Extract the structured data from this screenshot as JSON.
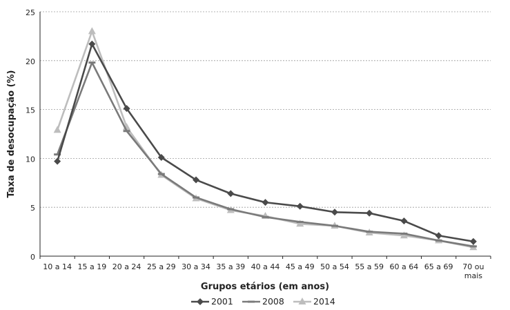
{
  "chart_data": {
    "type": "line",
    "categories": [
      "10 a 14",
      "15 a 19",
      "20 a 24",
      "25 a 29",
      "30 a 34",
      "35 a 39",
      "40 a 44",
      "45 a 49",
      "50 a 54",
      "55 a 59",
      "60 a 64",
      "65 a 69",
      "70 ou mais"
    ],
    "category_lines": [
      [
        "10 a 14"
      ],
      [
        "15 a 19"
      ],
      [
        "20 a 24"
      ],
      [
        "25 a 29"
      ],
      [
        "30 a 34"
      ],
      [
        "35 a 39"
      ],
      [
        "40 a 44"
      ],
      [
        "45 a 49"
      ],
      [
        "50 a 54"
      ],
      [
        "55 a 59"
      ],
      [
        "60 a 64"
      ],
      [
        "65 a 69"
      ],
      [
        "70 ou",
        "mais"
      ]
    ],
    "series": [
      {
        "name": "2001",
        "color": "#4a4a4a",
        "marker": "diamond",
        "values": [
          9.7,
          21.7,
          15.1,
          10.1,
          7.8,
          6.4,
          5.5,
          5.1,
          4.5,
          4.4,
          3.6,
          2.1,
          1.5
        ]
      },
      {
        "name": "2008",
        "color": "#7a7a7a",
        "marker": "dash",
        "values": [
          10.4,
          19.8,
          12.8,
          8.4,
          6.0,
          4.8,
          4.0,
          3.5,
          3.1,
          2.5,
          2.3,
          1.6,
          1.0
        ]
      },
      {
        "name": "2014",
        "color": "#bdbdbd",
        "marker": "triangle",
        "values": [
          12.9,
          23.0,
          13.2,
          8.3,
          5.9,
          4.7,
          4.1,
          3.3,
          3.1,
          2.4,
          2.1,
          1.6,
          0.9
        ]
      }
    ],
    "xlabel": "Grupos etários (em anos)",
    "ylabel": "Taxa de desocupação (%)",
    "ylim": [
      0,
      25
    ],
    "yticks": [
      "0",
      "5",
      "10",
      "15",
      "20",
      "25"
    ],
    "grid": "horizontal dashed",
    "legend_position": "bottom-center"
  }
}
